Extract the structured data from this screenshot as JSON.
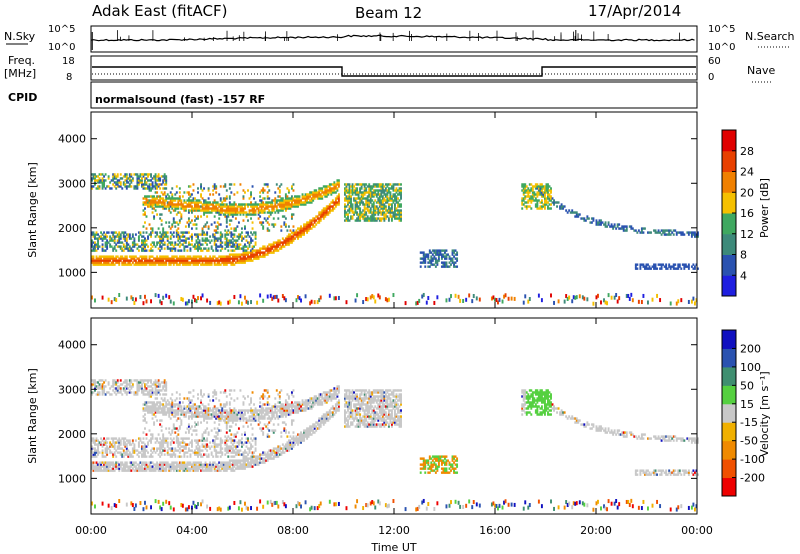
{
  "header": {
    "title_left": "Adak East (fitACF)",
    "title_center": "Beam 12",
    "title_right": "17/Apr/2014"
  },
  "top_panels": {
    "nsky_label": "N.Sky",
    "nsky_ticks": [
      "10^5",
      "10^0"
    ],
    "nsearch_label": "N.Search",
    "nsearch_ticks": [
      "10^5",
      "10^0"
    ],
    "freq_label": "Freq.",
    "freq_unit": "[MHz]",
    "freq_ticks": [
      "18",
      "8"
    ],
    "nave_label": "Nave",
    "nave_ticks": [
      "60",
      "0"
    ],
    "cpid_label": "CPID",
    "cpid_text": "normalsound (fast) -157 RF"
  },
  "colors": {
    "power_scale": [
      "#1f1fe0",
      "#2a52b0",
      "#3d8a7a",
      "#3fa860",
      "#f5c000",
      "#f08000",
      "#e84000",
      "#e00000"
    ],
    "velocity_scale": [
      "#ee0000",
      "#f05000",
      "#f08a00",
      "#f0b000",
      "#c8c8c8",
      "#55d040",
      "#3f8f70",
      "#2a52b0",
      "#1010c0"
    ]
  },
  "chart_data": [
    {
      "type": "heatmap",
      "panel": "power",
      "ylabel": "Slant Range [km]",
      "yticks": [
        "1000",
        "2000",
        "3000",
        "4000"
      ],
      "ylim": [
        200,
        4600
      ],
      "x_range": [
        "00:00",
        "24:00"
      ],
      "colorbar_label": "Power [dB]",
      "colorbar_ticks": [
        "4",
        "8",
        "12",
        "16",
        "20",
        "24",
        "28"
      ],
      "colorbar_range": [
        0,
        32
      ]
    },
    {
      "type": "heatmap",
      "panel": "velocity",
      "ylabel": "Slant Range [km]",
      "yticks": [
        "1000",
        "2000",
        "3000",
        "4000"
      ],
      "ylim": [
        200,
        4600
      ],
      "x_range": [
        "00:00",
        "24:00"
      ],
      "colorbar_label": "Velocity [m s⁻¹]",
      "colorbar_ticks": [
        "-200",
        "-100",
        "-50",
        "-15",
        "15",
        "50",
        "100",
        "200"
      ]
    }
  ],
  "xaxis": {
    "label": "Time UT",
    "ticks": [
      "00:00",
      "04:00",
      "08:00",
      "12:00",
      "16:00",
      "20:00",
      "00:00"
    ]
  }
}
